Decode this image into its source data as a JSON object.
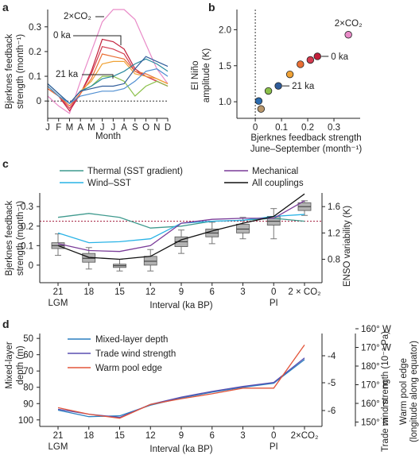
{
  "chart_data": [
    {
      "panel": "a",
      "type": "line",
      "ylabel": "Bjerknes feedback strength (month⁻¹)",
      "xlabel": "Month",
      "categories": [
        "J",
        "F",
        "M",
        "A",
        "M",
        "J",
        "J",
        "A",
        "S",
        "O",
        "N",
        "D"
      ],
      "ylim": [
        -0.07,
        0.37
      ],
      "yticks": [
        0,
        0.1,
        0.2,
        0.3
      ],
      "ytick_labels": [
        "0",
        "0.1",
        "0.2",
        "0.3"
      ],
      "annotations": [
        "2×CO₂",
        "0 ka",
        "21 ka"
      ],
      "series": [
        {
          "color": "#e98bc8",
          "values": [
            0.02,
            -0.02,
            -0.05,
            0.08,
            0.2,
            0.32,
            0.37,
            0.37,
            0.33,
            0.23,
            0.13,
            0.07
          ]
        },
        {
          "color": "#c21f3a",
          "values": [
            0.05,
            0.02,
            -0.04,
            0.03,
            0.12,
            0.25,
            0.24,
            0.21,
            0.13,
            0.1,
            0.08,
            0.06
          ]
        },
        {
          "color": "#d43b4f",
          "values": [
            0.06,
            0.02,
            -0.03,
            0.03,
            0.11,
            0.22,
            0.21,
            0.19,
            0.12,
            0.1,
            0.08,
            0.06
          ]
        },
        {
          "color": "#ea6f35",
          "values": [
            0.05,
            0.02,
            -0.02,
            0.03,
            0.09,
            0.19,
            0.18,
            0.17,
            0.12,
            0.11,
            0.09,
            0.07
          ]
        },
        {
          "color": "#f0a236",
          "values": [
            0.06,
            0.02,
            -0.01,
            0.04,
            0.08,
            0.15,
            0.16,
            0.16,
            0.11,
            0.1,
            0.09,
            0.07
          ]
        },
        {
          "color": "#8bc04a",
          "values": [
            0.06,
            0.02,
            -0.01,
            0.04,
            0.06,
            0.1,
            0.1,
            0.08,
            0.02,
            0.06,
            0.08,
            0.06
          ]
        },
        {
          "color": "#2b8ba0",
          "values": [
            0.07,
            0.03,
            -0.01,
            0.04,
            0.06,
            0.09,
            0.1,
            0.12,
            0.15,
            0.17,
            0.15,
            0.12
          ]
        },
        {
          "color": "#2f5c9a",
          "values": [
            0.07,
            0.03,
            -0.01,
            0.04,
            0.05,
            0.06,
            0.06,
            0.07,
            0.13,
            0.18,
            0.16,
            0.14
          ]
        },
        {
          "color": "#4f8ed1",
          "values": [
            0.06,
            0.02,
            -0.01,
            0.02,
            0.03,
            0.04,
            0.04,
            0.05,
            0.08,
            0.12,
            0.13,
            0.1
          ]
        }
      ]
    },
    {
      "panel": "b",
      "type": "scatter",
      "ylabel": "El Niño amplitude (K)",
      "xlabel": "Bjerknes feedback strength June–September (month⁻¹)",
      "xlim": [
        -0.07,
        0.4
      ],
      "ylim": [
        0.77,
        2.28
      ],
      "xticks": [
        0,
        0.1,
        0.2,
        0.3
      ],
      "xtick_labels": [
        "0",
        "0.1",
        "0.2",
        "0.3"
      ],
      "yticks": [
        1.0,
        1.5,
        2.0
      ],
      "ytick_labels": [
        "1.0",
        "1.5",
        "2.0"
      ],
      "annotations": [
        "2×CO₂",
        "0 ka",
        "21 ka"
      ],
      "points": [
        {
          "x": 0.355,
          "y": 1.93,
          "color": "#e98bc8"
        },
        {
          "x": 0.237,
          "y": 1.63,
          "color": "#c21f3a"
        },
        {
          "x": 0.21,
          "y": 1.58,
          "color": "#d43b4f"
        },
        {
          "x": 0.172,
          "y": 1.52,
          "color": "#ea6f35"
        },
        {
          "x": 0.132,
          "y": 1.38,
          "color": "#f0a236"
        },
        {
          "x": 0.088,
          "y": 1.22,
          "color": "#2f5c9a"
        },
        {
          "x": 0.05,
          "y": 1.15,
          "color": "#8bc04a"
        },
        {
          "x": 0.013,
          "y": 1.01,
          "color": "#2b6cb0"
        },
        {
          "x": 0.022,
          "y": 0.9,
          "color": "#b8966a"
        }
      ]
    },
    {
      "panel": "c",
      "type": "line",
      "ylabel": "Bjerknes feedback strength (month⁻¹)",
      "y2label": "ENSO variability (K)",
      "xlabel": "Interval (ka BP)",
      "categories": [
        "21",
        "18",
        "15",
        "12",
        "9",
        "6",
        "3",
        "0",
        "2 × CO₂"
      ],
      "category_sublabels": [
        "LGM",
        "",
        "",
        "",
        "",
        "",
        "",
        "PI",
        ""
      ],
      "ylim": [
        -0.09,
        0.37
      ],
      "yticks": [
        0,
        0.1,
        0.2,
        0.3
      ],
      "ytick_labels": [
        "0",
        "0.1",
        "0.2",
        "0.3"
      ],
      "y2ticks": [
        0.8,
        1.2,
        1.6
      ],
      "y2tick_labels": [
        "0.8",
        "1.2",
        "1.6"
      ],
      "reference_line": 0.225,
      "series": [
        {
          "name": "Thermal (SST gradient)",
          "color": "#3f9a8e",
          "values": [
            0.245,
            0.265,
            0.245,
            0.19,
            0.2,
            0.225,
            0.23,
            0.24,
            0.225
          ]
        },
        {
          "name": "Wind–SST",
          "color": "#29b3e6",
          "values": [
            0.165,
            0.115,
            0.12,
            0.135,
            0.215,
            0.225,
            0.23,
            0.25,
            0.26
          ]
        },
        {
          "name": "Mechanical",
          "color": "#7a3c99",
          "values": [
            0.11,
            0.075,
            0.07,
            0.1,
            0.215,
            0.235,
            0.24,
            0.24,
            0.33
          ]
        },
        {
          "name": "All couplings",
          "color": "#111111",
          "values": [
            0.1,
            0.04,
            0.03,
            0.045,
            0.13,
            0.175,
            0.215,
            0.25,
            0.365
          ]
        }
      ],
      "boxes": [
        {
          "q1": 0.085,
          "median": 0.1,
          "q3": 0.115,
          "wlo": 0.05,
          "whi": 0.16
        },
        {
          "q1": 0.015,
          "median": 0.035,
          "q3": 0.06,
          "wlo": -0.02,
          "whi": 0.09
        },
        {
          "q1": -0.012,
          "median": -0.003,
          "q3": 0.005,
          "wlo": -0.03,
          "whi": 0.03
        },
        {
          "q1": 0.0,
          "median": 0.02,
          "q3": 0.045,
          "wlo": -0.03,
          "whi": 0.08
        },
        {
          "q1": 0.095,
          "median": 0.12,
          "q3": 0.145,
          "wlo": 0.06,
          "whi": 0.18
        },
        {
          "q1": 0.145,
          "median": 0.165,
          "q3": 0.185,
          "wlo": 0.11,
          "whi": 0.22
        },
        {
          "q1": 0.165,
          "median": 0.185,
          "q3": 0.21,
          "wlo": 0.135,
          "whi": 0.245
        },
        {
          "q1": 0.205,
          "median": 0.225,
          "q3": 0.25,
          "wlo": 0.135,
          "whi": 0.29
        },
        {
          "q1": 0.28,
          "median": 0.3,
          "q3": 0.32,
          "wlo": 0.255,
          "whi": 0.33
        }
      ]
    },
    {
      "panel": "d",
      "type": "line",
      "ylabel": "Mixed-layer depth (m)",
      "y2label": "Trade wind strength (10⁻² Pa)",
      "y3label": "Warm pool edge (longitude along equator)",
      "xlabel": "Interval (ka BP)",
      "categories": [
        "21",
        "18",
        "15",
        "12",
        "9",
        "6",
        "3",
        "0",
        "2×CO₂"
      ],
      "category_sublabels": [
        "LGM",
        "",
        "",
        "",
        "",
        "",
        "",
        "PI",
        ""
      ],
      "ylim": [
        104,
        47
      ],
      "yticks": [
        50,
        60,
        70,
        80,
        90,
        100
      ],
      "ytick_labels": [
        "50",
        "60",
        "70",
        "80",
        "90",
        "100"
      ],
      "y2ticks": [
        "-4",
        "-5",
        "-6"
      ],
      "y3ticks": [
        "160° W",
        "170° W",
        "180°",
        "170° E",
        "160° E",
        "150° E"
      ],
      "series": [
        {
          "name": "Mixed-layer depth",
          "color": "#2a7fc0",
          "values": [
            94,
            98,
            97.5,
            91,
            86.5,
            83,
            80,
            77.5,
            63
          ]
        },
        {
          "name": "Trade wind strength",
          "color": "#5a4eb0",
          "values": [
            93.5,
            96.5,
            98.5,
            90.5,
            86,
            82.5,
            79.5,
            77,
            62
          ]
        },
        {
          "name": "Warm pool edge",
          "color": "#e3553a",
          "values": [
            92.5,
            96.5,
            99,
            90.5,
            87,
            84,
            80.5,
            80.5,
            54
          ]
        }
      ]
    }
  ]
}
